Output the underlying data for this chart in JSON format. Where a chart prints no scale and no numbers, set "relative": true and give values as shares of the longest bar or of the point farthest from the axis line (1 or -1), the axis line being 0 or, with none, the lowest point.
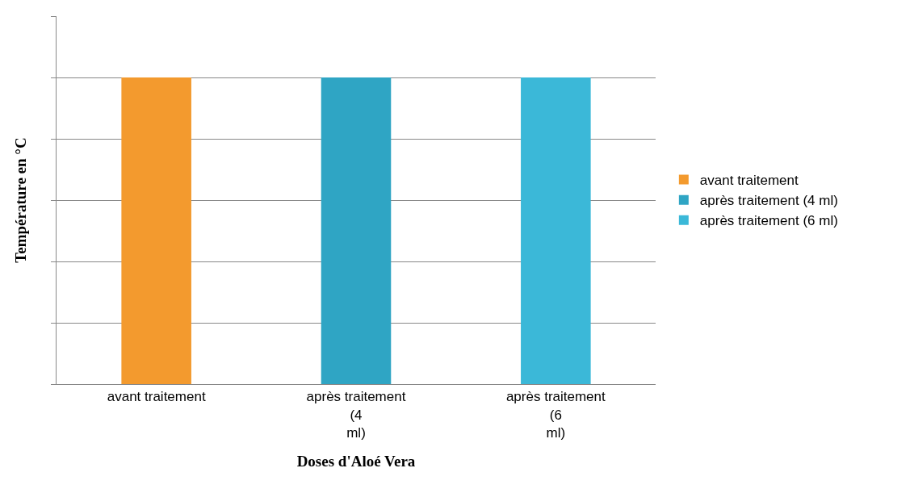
{
  "chart_data": {
    "type": "bar",
    "relative": true,
    "xlabel": "Doses d'Aloé Vera",
    "ylabel": "Température en °C",
    "categories": [
      "avant traitement",
      "après traitement (4 ml)",
      "après traitement (6 ml)"
    ],
    "series": [
      {
        "name": "avant traitement",
        "color": "#f39a2e",
        "values": [
          1,
          null,
          null
        ]
      },
      {
        "name": "après traitement (4 ml)",
        "color": "#2fa5c4",
        "values": [
          null,
          1,
          null
        ]
      },
      {
        "name": "après traitement (6 ml)",
        "color": "#3bb8d8",
        "values": [
          null,
          null,
          1
        ]
      }
    ],
    "grid": "y",
    "legend": "right"
  }
}
